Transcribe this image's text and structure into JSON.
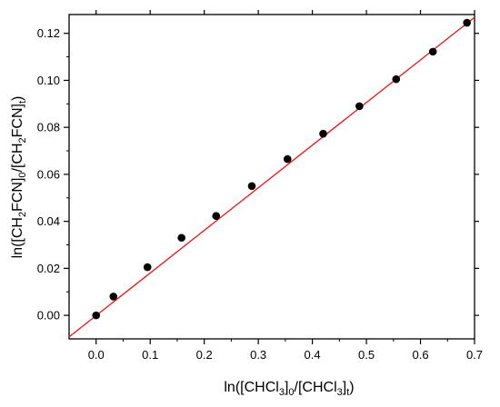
{
  "chart_data": {
    "type": "scatter",
    "xlabel": "ln([CHCl3]0/[CHCl3]t)",
    "ylabel": "ln([CH2FCN]0/[CH2FCN]t)",
    "xlim": [
      -0.05,
      0.7
    ],
    "ylim": [
      -0.01,
      0.128
    ],
    "x_ticks": [
      0.0,
      0.1,
      0.2,
      0.3,
      0.4,
      0.5,
      0.6,
      0.7
    ],
    "x_tick_labels": [
      "0.0",
      "0.1",
      "0.2",
      "0.3",
      "0.4",
      "0.5",
      "0.6",
      "0.7"
    ],
    "y_ticks": [
      0.0,
      0.02,
      0.04,
      0.06,
      0.08,
      0.1,
      0.12
    ],
    "y_tick_labels": [
      "0.00",
      "0.02",
      "0.04",
      "0.06",
      "0.08",
      "0.10",
      "0.12"
    ],
    "grid": false,
    "series": [
      {
        "points": [
          [
            0.0,
            0.0
          ],
          [
            0.032,
            0.008
          ],
          [
            0.095,
            0.0205
          ],
          [
            0.158,
            0.033
          ],
          [
            0.222,
            0.0423
          ],
          [
            0.288,
            0.055
          ],
          [
            0.354,
            0.0665
          ],
          [
            0.42,
            0.0773
          ],
          [
            0.487,
            0.089
          ],
          [
            0.555,
            0.1005
          ],
          [
            0.623,
            0.1122
          ],
          [
            0.686,
            0.1245
          ]
        ],
        "color": "#000000"
      }
    ],
    "fit_line": {
      "slope": 0.1813,
      "intercept": -0.0001,
      "x_range": [
        -0.05,
        0.7
      ],
      "color": "#e8141c"
    }
  }
}
